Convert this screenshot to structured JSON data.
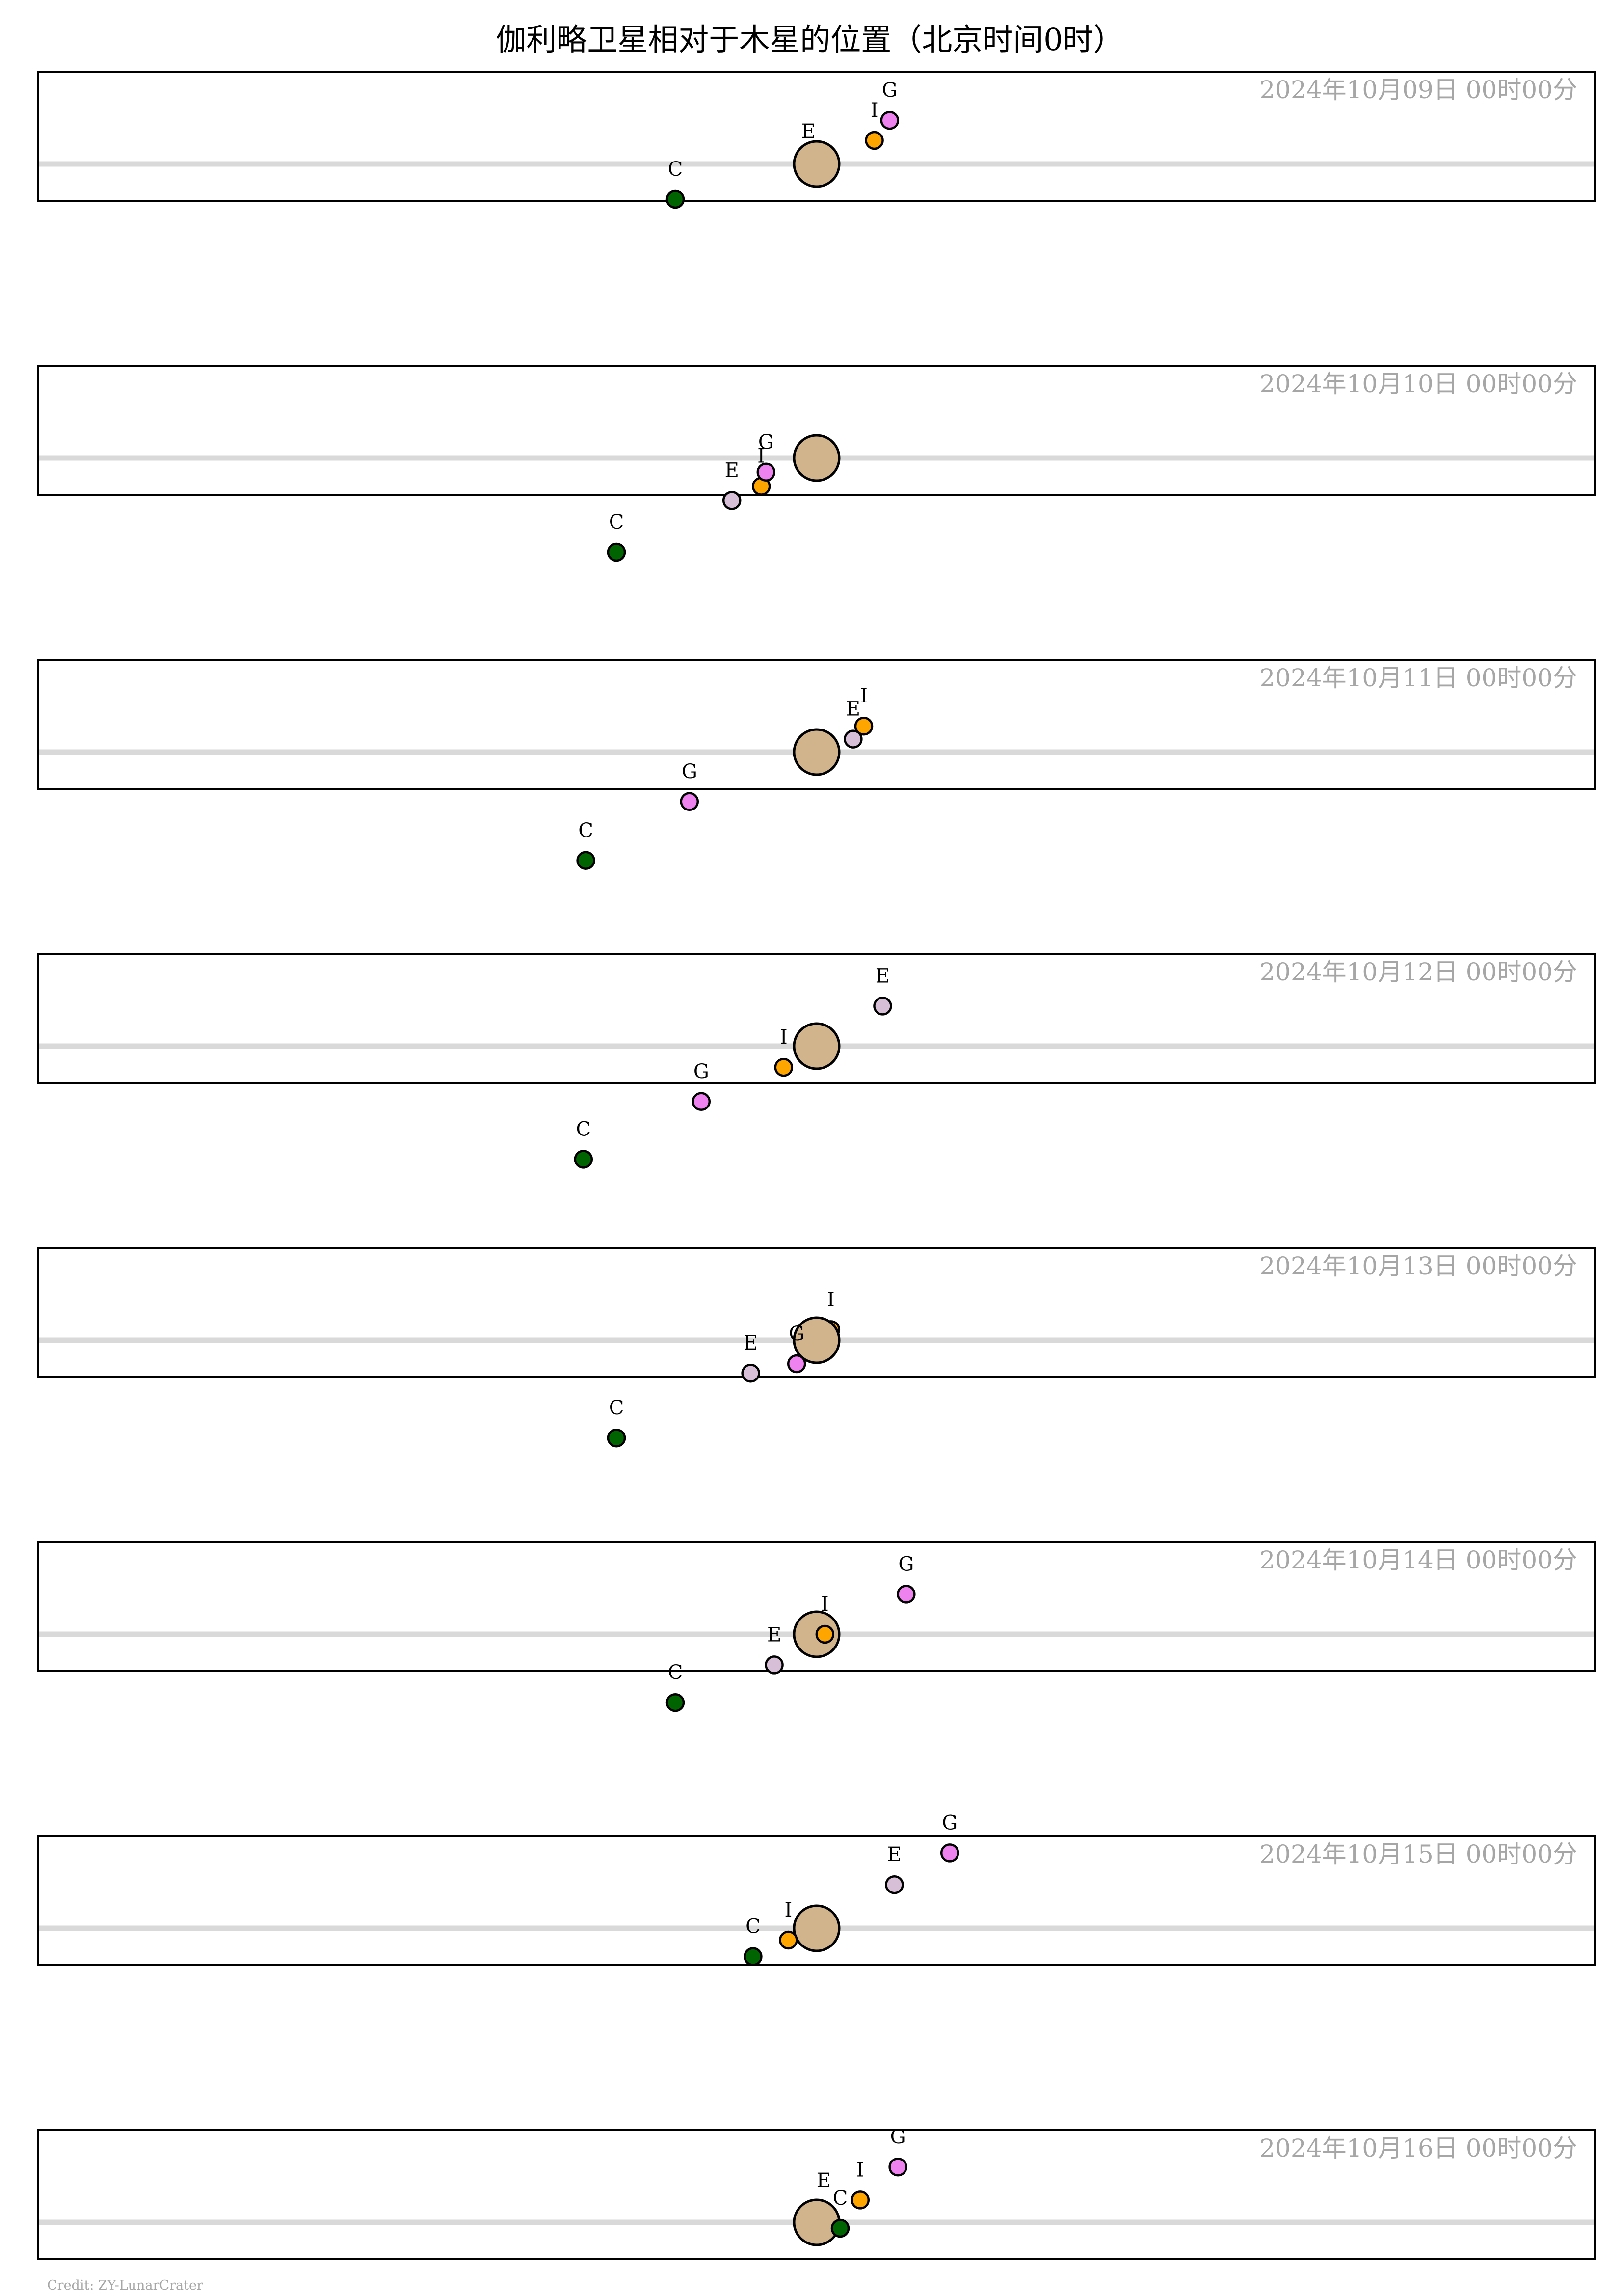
{
  "chart_data": {
    "type": "scatter",
    "title": "伽利略卫星相对于木星的位置（北京时间0时）",
    "units_note": "dx: offset from Jupiter along the orbital line, dy: offset above the line (positive = up), in Jupiter radii",
    "credit": "Credit: ZY-LunarCrater",
    "colors": {
      "jupiter": "#d2b48c",
      "orbit_line": "#d9d9d9",
      "date_text": "#a6a6a6",
      "frame": "#000000",
      "I": "#ffa500",
      "E": "#d8bfd8",
      "G": "#ee82ee",
      "C": "#006400"
    },
    "panels": [
      {
        "date": "2024年10月09日  00时00分",
        "moons": [
          {
            "id": "I",
            "dx": 2.45,
            "dy": 1.0
          },
          {
            "id": "E",
            "dx": -0.35,
            "dy": 0.1
          },
          {
            "id": "G",
            "dx": 3.1,
            "dy": 1.85
          },
          {
            "id": "C",
            "dx": -6.0,
            "dy": -1.5
          }
        ]
      },
      {
        "date": "2024年10月10日  00时00分",
        "moons": [
          {
            "id": "I",
            "dx": -2.35,
            "dy": -1.2
          },
          {
            "id": "E",
            "dx": -3.6,
            "dy": -1.8
          },
          {
            "id": "G",
            "dx": -2.15,
            "dy": -0.6
          },
          {
            "id": "C",
            "dx": -8.5,
            "dy": -4.0
          }
        ]
      },
      {
        "date": "2024年10月11日  00时00分",
        "moons": [
          {
            "id": "I",
            "dx": 2.0,
            "dy": 1.1
          },
          {
            "id": "E",
            "dx": 1.55,
            "dy": 0.55
          },
          {
            "id": "G",
            "dx": -5.4,
            "dy": -2.1
          },
          {
            "id": "C",
            "dx": -9.8,
            "dy": -4.6
          }
        ]
      },
      {
        "date": "2024年10月12日  00时00分",
        "moons": [
          {
            "id": "I",
            "dx": -1.4,
            "dy": -0.9
          },
          {
            "id": "E",
            "dx": 2.8,
            "dy": 1.7
          },
          {
            "id": "G",
            "dx": -4.9,
            "dy": -2.35
          },
          {
            "id": "C",
            "dx": -9.9,
            "dy": -4.8
          }
        ]
      },
      {
        "date": "2024年10月13日  00时00分",
        "moons": [
          {
            "id": "I",
            "dx": 0.6,
            "dy": 0.45
          },
          {
            "id": "E",
            "dx": -2.8,
            "dy": -1.4
          },
          {
            "id": "G",
            "dx": -0.85,
            "dy": -1.0
          },
          {
            "id": "C",
            "dx": -8.5,
            "dy": -4.15
          }
        ]
      },
      {
        "date": "2024年10月14日  00时00分",
        "moons": [
          {
            "id": "I",
            "dx": 0.35,
            "dy": 0.0
          },
          {
            "id": "E",
            "dx": -1.8,
            "dy": -1.3
          },
          {
            "id": "G",
            "dx": 3.8,
            "dy": 1.7
          },
          {
            "id": "C",
            "dx": -6.0,
            "dy": -2.9
          }
        ]
      },
      {
        "date": "2024年10月15日  00时00分",
        "moons": [
          {
            "id": "I",
            "dx": -1.2,
            "dy": -0.5
          },
          {
            "id": "E",
            "dx": 3.3,
            "dy": 1.85
          },
          {
            "id": "G",
            "dx": 5.65,
            "dy": 3.2
          },
          {
            "id": "C",
            "dx": -2.7,
            "dy": -1.2
          }
        ]
      },
      {
        "date": "2024年10月16日  00时00分",
        "moons": [
          {
            "id": "I",
            "dx": 1.85,
            "dy": 0.95
          },
          {
            "id": "E",
            "dx": 0.3,
            "dy": 0.5
          },
          {
            "id": "G",
            "dx": 3.45,
            "dy": 2.35
          },
          {
            "id": "C",
            "dx": 1.0,
            "dy": -0.25
          }
        ]
      }
    ]
  }
}
